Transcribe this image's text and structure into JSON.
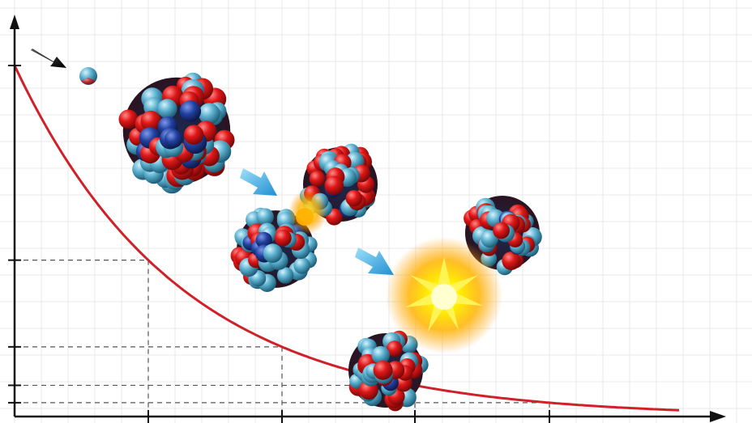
{
  "diagram": {
    "type": "radioactive-decay-illustration",
    "colors": {
      "background": "#ffffff",
      "grid": "#e6e6e6",
      "axis": "#111111",
      "decay_curve": "#d0202a",
      "guide_lines": "#555555",
      "proton": "#e01818",
      "neutron": "#5fb4d2",
      "nucleus_dark": "#2040a0",
      "arrow": "#3aa8e0",
      "incoming_arrow": "#111111",
      "energy_flash": "#ffd200"
    },
    "icons": {
      "incoming": "incoming-neutron-arrow-icon",
      "step": "process-arrow-icon",
      "flash": "energy-flash-icon"
    },
    "stages": [
      "incoming-neutron",
      "heavy-nucleus",
      "fission-split",
      "energy-release",
      "product-nuclei"
    ]
  }
}
